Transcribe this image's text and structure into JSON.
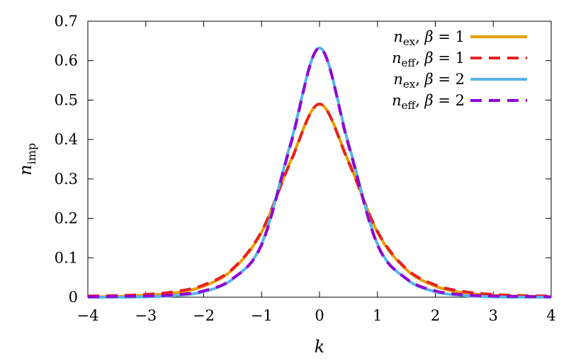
{
  "chart_data": {
    "type": "line",
    "xlabel": "k",
    "ylabel": "n_imp",
    "ylabel_main": "n",
    "ylabel_sub": "imp",
    "xlim": [
      -4,
      4
    ],
    "ylim": [
      0,
      0.7
    ],
    "xticks": [
      -4,
      -3,
      -2,
      -1,
      0,
      1,
      2,
      3,
      4
    ],
    "xtick_labels": [
      "−4",
      "−3",
      "−2",
      "−1",
      "0",
      "1",
      "2",
      "3",
      "4"
    ],
    "yticks": [
      0,
      0.1,
      0.2,
      0.3,
      0.4,
      0.5,
      0.6,
      0.7
    ],
    "ytick_labels": [
      "0",
      "0.1",
      "0.2",
      "0.3",
      "0.4",
      "0.5",
      "0.6",
      "0.7"
    ],
    "grid": false,
    "legend_position": "top-right",
    "x": [
      -4,
      -3.5,
      -3,
      -2.5,
      -2,
      -1.5,
      -1,
      -0.5,
      0,
      0.5,
      1,
      1.5,
      2,
      2.5,
      3,
      3.5,
      4
    ],
    "series": [
      {
        "name": "n_ex, β = 1",
        "legend": {
          "n": "n",
          "sub": "ex",
          "rest": ", ",
          "beta": "β",
          "eq": " = 1"
        },
        "color": "#E69F00",
        "dash": "solid",
        "values": [
          0.001,
          0.002,
          0.005,
          0.011,
          0.028,
          0.07,
          0.165,
          0.345,
          0.49,
          0.345,
          0.165,
          0.07,
          0.028,
          0.011,
          0.005,
          0.002,
          0.001
        ]
      },
      {
        "name": "n_eff, β = 1",
        "legend": {
          "n": "n",
          "sub": "eff",
          "rest": ", ",
          "beta": "β",
          "eq": " = 1"
        },
        "color": "#E52222",
        "dash": "dashed",
        "values": [
          0.003,
          0.004,
          0.007,
          0.014,
          0.031,
          0.072,
          0.167,
          0.343,
          0.49,
          0.343,
          0.167,
          0.072,
          0.031,
          0.014,
          0.007,
          0.004,
          0.003
        ]
      },
      {
        "name": "n_ex, β = 2",
        "legend": {
          "n": "n",
          "sub": "ex",
          "rest": ", ",
          "beta": "β",
          "eq": " = 2"
        },
        "color": "#56B4E9",
        "dash": "solid",
        "values": [
          0.0,
          0.0,
          0.001,
          0.004,
          0.014,
          0.046,
          0.135,
          0.39,
          0.632,
          0.39,
          0.135,
          0.046,
          0.014,
          0.004,
          0.001,
          0.0,
          0.0
        ]
      },
      {
        "name": "n_eff, β = 2",
        "legend": {
          "n": "n",
          "sub": "eff",
          "rest": ", ",
          "beta": "β",
          "eq": " = 2"
        },
        "color": "#9400D3",
        "dash": "dashed",
        "values": [
          0.001,
          0.002,
          0.003,
          0.006,
          0.016,
          0.047,
          0.133,
          0.386,
          0.632,
          0.386,
          0.133,
          0.047,
          0.016,
          0.006,
          0.003,
          0.002,
          0.001
        ]
      }
    ]
  }
}
